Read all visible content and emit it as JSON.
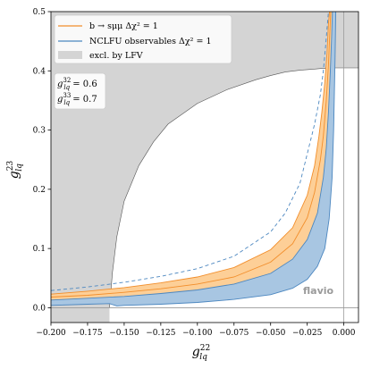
{
  "chart_data": {
    "type": "line",
    "xlabel": "g",
    "xlabel_sup": "22",
    "xlabel_sub": "lq",
    "ylabel": "g",
    "ylabel_sup": "23",
    "ylabel_sub": "lq",
    "xlim": [
      -0.2,
      0.01
    ],
    "ylim": [
      -0.025,
      0.5
    ],
    "xticks": [
      -0.2,
      -0.175,
      -0.15,
      -0.125,
      -0.1,
      -0.075,
      -0.05,
      -0.025,
      0.0
    ],
    "xtick_labels": [
      "−0.200",
      "−0.175",
      "−0.150",
      "−0.125",
      "−0.100",
      "−0.075",
      "−0.050",
      "−0.025",
      "0.000"
    ],
    "yticks": [
      0.0,
      0.1,
      0.2,
      0.3,
      0.4,
      0.5
    ],
    "ytick_labels": [
      "0.0",
      "0.1",
      "0.2",
      "0.3",
      "0.4",
      "0.5"
    ],
    "grid": false,
    "legend_placement": "top-left",
    "legend": [
      {
        "label": "b → sμμ Δχ² = 1",
        "color": "#f28e2b",
        "kind": "line"
      },
      {
        "label": "NCLFU observables Δχ² = 1",
        "color": "#4c87c0",
        "kind": "line"
      },
      {
        "label": "excl. by LFV",
        "color": "#d4d4d4",
        "kind": "patch"
      }
    ],
    "parameters": [
      {
        "text": "g",
        "sup": "32",
        "sub": "lq",
        "value": " = 0.6"
      },
      {
        "text": "g",
        "sup": "33",
        "sub": "lq",
        "value": " = 0.7"
      }
    ],
    "watermark": "flavio",
    "lfv_boundary": {
      "x": [
        -0.16,
        -0.158,
        -0.155,
        -0.15,
        -0.14,
        -0.13,
        -0.12,
        -0.1,
        -0.08,
        -0.06,
        -0.05,
        -0.04,
        -0.03,
        -0.02,
        -0.015,
        -0.012,
        -0.01,
        -0.008
      ],
      "y": [
        0.0,
        0.06,
        0.12,
        0.18,
        0.24,
        0.28,
        0.31,
        0.345,
        0.368,
        0.385,
        0.392,
        0.398,
        0.401,
        0.403,
        0.404,
        0.404,
        0.405,
        0.405
      ],
      "upper_level": 0.405,
      "color": "#d4d4d4"
    },
    "series": [
      {
        "name": "b → sμμ Δχ² = 1",
        "color": "#f28e2b",
        "fill": "#fdcf97",
        "upper": {
          "x": [
            -0.2,
            -0.175,
            -0.15,
            -0.125,
            -0.1,
            -0.075,
            -0.05,
            -0.035,
            -0.025,
            -0.02,
            -0.017,
            -0.015,
            -0.013,
            -0.0115,
            -0.0105,
            -0.0098
          ],
          "y": [
            0.023,
            0.028,
            0.034,
            0.042,
            0.052,
            0.068,
            0.098,
            0.135,
            0.19,
            0.24,
            0.29,
            0.33,
            0.38,
            0.43,
            0.48,
            0.5
          ]
        },
        "central": {
          "x": [
            -0.2,
            -0.175,
            -0.15,
            -0.125,
            -0.1,
            -0.075,
            -0.05,
            -0.035,
            -0.025,
            -0.02,
            -0.016,
            -0.014,
            -0.012,
            -0.0105,
            -0.0095,
            -0.009
          ],
          "y": [
            0.018,
            0.021,
            0.026,
            0.032,
            0.04,
            0.052,
            0.077,
            0.108,
            0.152,
            0.195,
            0.25,
            0.29,
            0.35,
            0.41,
            0.47,
            0.5
          ]
        },
        "lower": {
          "x": [
            -0.2,
            -0.175,
            -0.15,
            -0.125,
            -0.1,
            -0.075,
            -0.05,
            -0.035,
            -0.025,
            -0.018,
            -0.014,
            -0.012,
            -0.0105,
            -0.0092,
            -0.0083,
            -0.0078
          ],
          "y": [
            0.013,
            0.016,
            0.019,
            0.024,
            0.03,
            0.04,
            0.058,
            0.082,
            0.115,
            0.16,
            0.22,
            0.27,
            0.33,
            0.4,
            0.46,
            0.5
          ]
        }
      },
      {
        "name": "NCLFU observables Δχ² = 1",
        "color": "#4c87c0",
        "fill": "#a8c6e2",
        "dashed": {
          "x": [
            -0.2,
            -0.175,
            -0.15,
            -0.125,
            -0.1,
            -0.075,
            -0.05,
            -0.04,
            -0.03,
            -0.025,
            -0.02,
            -0.016,
            -0.014,
            -0.0125,
            -0.0112,
            -0.0105
          ],
          "y": [
            0.029,
            0.035,
            0.043,
            0.053,
            0.066,
            0.087,
            0.128,
            0.16,
            0.21,
            0.26,
            0.31,
            0.36,
            0.4,
            0.44,
            0.48,
            0.5
          ]
        },
        "band_upper": {
          "x": [
            -0.2,
            -0.175,
            -0.15,
            -0.125,
            -0.1,
            -0.075,
            -0.05,
            -0.035,
            -0.025,
            -0.018,
            -0.014,
            -0.012,
            -0.0105,
            -0.0092,
            -0.0083,
            -0.0078
          ],
          "y": [
            0.013,
            0.016,
            0.019,
            0.024,
            0.03,
            0.04,
            0.058,
            0.082,
            0.115,
            0.16,
            0.22,
            0.27,
            0.33,
            0.4,
            0.46,
            0.5
          ]
        },
        "band_lower": {
          "x": [
            -0.2,
            -0.175,
            -0.16,
            -0.155,
            -0.15,
            -0.125,
            -0.1,
            -0.075,
            -0.05,
            -0.035,
            -0.025,
            -0.018,
            -0.013,
            -0.01,
            -0.008,
            -0.007,
            -0.006,
            -0.0055
          ],
          "y": [
            0.004,
            0.006,
            0.007,
            0.003,
            0.004,
            0.006,
            0.009,
            0.014,
            0.022,
            0.033,
            0.048,
            0.07,
            0.1,
            0.15,
            0.22,
            0.3,
            0.42,
            0.5
          ]
        }
      }
    ],
    "reference_lines": [
      {
        "orientation": "horizontal",
        "value": 0.0,
        "color": "#9a9a9a"
      },
      {
        "orientation": "vertical",
        "value": 0.0,
        "color": "#9a9a9a"
      }
    ]
  }
}
